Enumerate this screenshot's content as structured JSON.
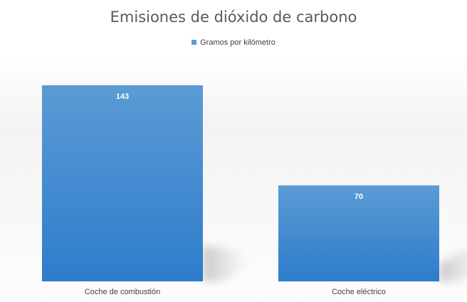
{
  "colors": {
    "bar_top": "#5b9bd5",
    "bar_bottom": "#2e7ccb",
    "legend_swatch": "#5b9bd5",
    "label_text": "#ffffff",
    "axis_text": "#404040",
    "title_text": "#595959"
  },
  "chart_data": {
    "type": "bar",
    "title": "Emisiones de dióxido de carbono",
    "categories": [
      "Coche de combustión",
      "Coche eléctrico"
    ],
    "series": [
      {
        "name": "Gramos por kilómetro",
        "values": [
          143,
          70
        ]
      }
    ],
    "xlabel": "",
    "ylabel": "",
    "ylim": [
      0,
      143
    ],
    "grid": false,
    "legend_position": "top",
    "data_labels": true,
    "data_label_position": "inside-end"
  }
}
